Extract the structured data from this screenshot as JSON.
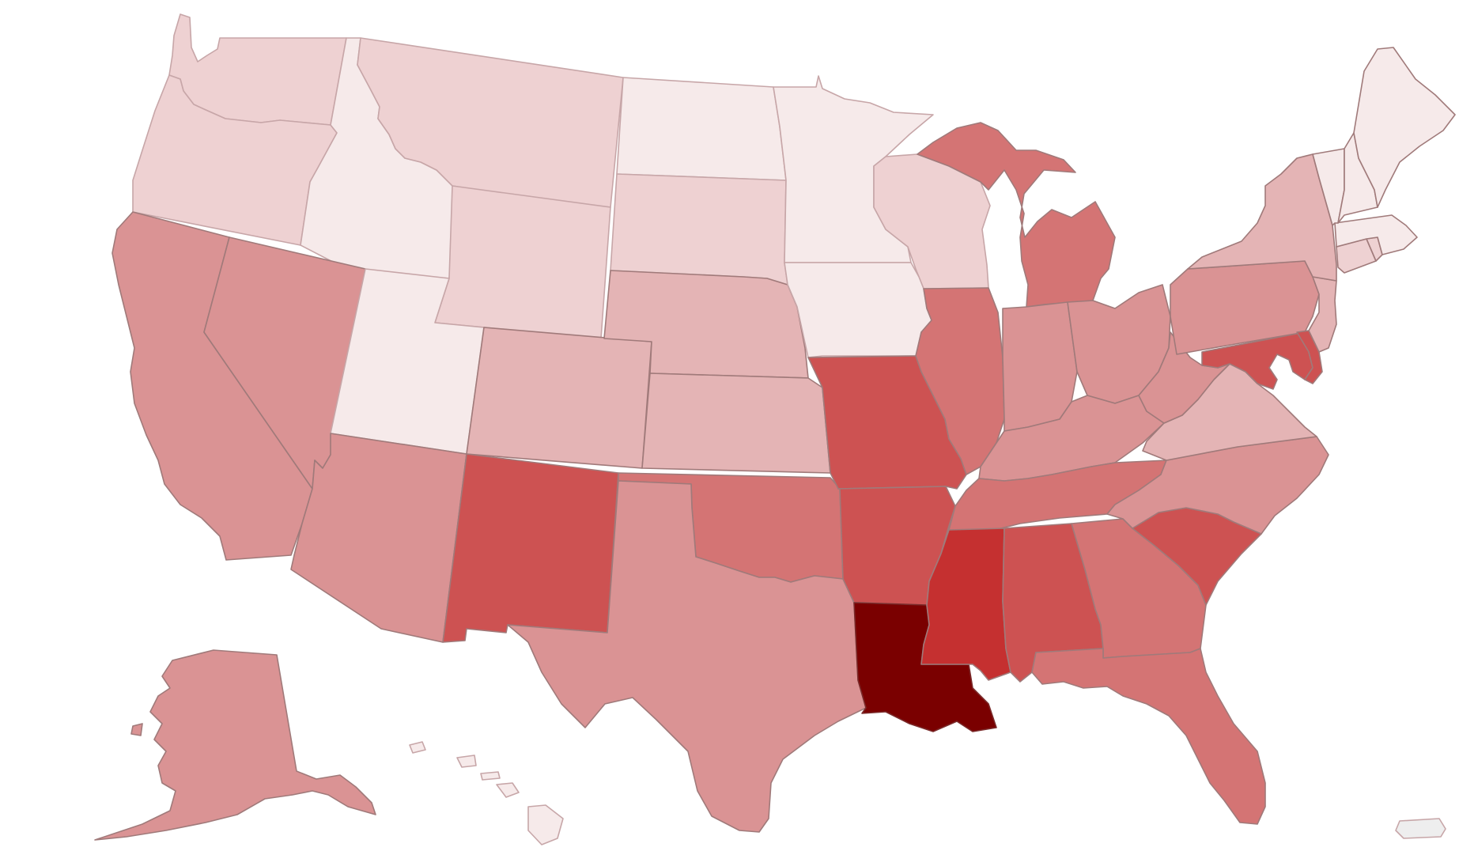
{
  "map": {
    "type": "us-states-choropleth",
    "legend": null,
    "title": "",
    "tier_colors": {
      "t1": "#f6eaea",
      "t2": "#eed1d2",
      "t3": "#e4b4b5",
      "t4": "#da9394",
      "t5": "#d47474",
      "t6": "#cd5252",
      "t7": "#c53030",
      "t8": "#7a0000",
      "territory": "#eeeeee"
    },
    "states": [
      {
        "code": "WA",
        "tier": "t2"
      },
      {
        "code": "OR",
        "tier": "t2"
      },
      {
        "code": "CA",
        "tier": "t4"
      },
      {
        "code": "ID",
        "tier": "t1"
      },
      {
        "code": "NV",
        "tier": "t4"
      },
      {
        "code": "MT",
        "tier": "t2"
      },
      {
        "code": "WY",
        "tier": "t2"
      },
      {
        "code": "UT",
        "tier": "t1"
      },
      {
        "code": "AZ",
        "tier": "t4"
      },
      {
        "code": "CO",
        "tier": "t3"
      },
      {
        "code": "NM",
        "tier": "t6"
      },
      {
        "code": "ND",
        "tier": "t1"
      },
      {
        "code": "SD",
        "tier": "t2"
      },
      {
        "code": "NE",
        "tier": "t3"
      },
      {
        "code": "KS",
        "tier": "t3"
      },
      {
        "code": "OK",
        "tier": "t5"
      },
      {
        "code": "TX",
        "tier": "t4"
      },
      {
        "code": "MN",
        "tier": "t1"
      },
      {
        "code": "IA",
        "tier": "t1"
      },
      {
        "code": "MO",
        "tier": "t6"
      },
      {
        "code": "AR",
        "tier": "t6"
      },
      {
        "code": "LA",
        "tier": "t8"
      },
      {
        "code": "WI",
        "tier": "t2"
      },
      {
        "code": "IL",
        "tier": "t5"
      },
      {
        "code": "MI",
        "tier": "t5"
      },
      {
        "code": "IN",
        "tier": "t4"
      },
      {
        "code": "OH",
        "tier": "t4"
      },
      {
        "code": "KY",
        "tier": "t4"
      },
      {
        "code": "TN",
        "tier": "t5"
      },
      {
        "code": "MS",
        "tier": "t7"
      },
      {
        "code": "AL",
        "tier": "t6"
      },
      {
        "code": "GA",
        "tier": "t5"
      },
      {
        "code": "FL",
        "tier": "t5"
      },
      {
        "code": "SC",
        "tier": "t6"
      },
      {
        "code": "NC",
        "tier": "t4"
      },
      {
        "code": "VA",
        "tier": "t3"
      },
      {
        "code": "WV",
        "tier": "t4"
      },
      {
        "code": "MD",
        "tier": "t6"
      },
      {
        "code": "DE",
        "tier": "t6"
      },
      {
        "code": "PA",
        "tier": "t4"
      },
      {
        "code": "NJ",
        "tier": "t3"
      },
      {
        "code": "NY",
        "tier": "t3"
      },
      {
        "code": "CT",
        "tier": "t2"
      },
      {
        "code": "RI",
        "tier": "t2"
      },
      {
        "code": "MA",
        "tier": "t1"
      },
      {
        "code": "VT",
        "tier": "t1"
      },
      {
        "code": "NH",
        "tier": "t1"
      },
      {
        "code": "ME",
        "tier": "t1"
      },
      {
        "code": "AK",
        "tier": "t4"
      },
      {
        "code": "HI",
        "tier": "t1"
      },
      {
        "code": "PR",
        "tier": "territory"
      }
    ]
  }
}
